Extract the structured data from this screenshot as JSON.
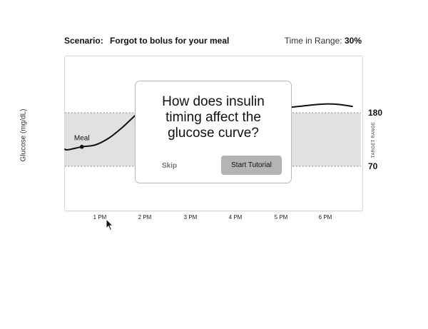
{
  "header": {
    "scenario_label": "Scenario:",
    "scenario_text": "Forgot to bolus for your meal",
    "time_in_range_label": "Time in Range:",
    "time_in_range_value": "30%"
  },
  "chart": {
    "y_axis_label": "Glucose (mg/dL)",
    "target_range_label": "TARGET RANGE",
    "range_high": "180",
    "range_low": "70",
    "x_ticks": [
      "1 PM",
      "2 PM",
      "3 PM",
      "4 PM",
      "5 PM",
      "6 PM"
    ],
    "meal_label": "Meal",
    "range_fill_color": "#e2e0e2",
    "curve_color": "#111111"
  },
  "chart_data": {
    "type": "line",
    "title": "",
    "xlabel": "",
    "ylabel": "Glucose (mg/dL)",
    "x_ticks": [
      "1 PM",
      "2 PM",
      "3 PM",
      "4 PM",
      "5 PM",
      "6 PM"
    ],
    "target_range": [
      70,
      180
    ],
    "series": [
      {
        "x": [
          12.0,
          12.3,
          12.6,
          12.9,
          13.2,
          13.5,
          13.8,
          14.1,
          14.4,
          14.7,
          15.0,
          15.3,
          15.6,
          15.9,
          16.2,
          16.5,
          16.8,
          17.1,
          17.4,
          17.7,
          18.0,
          18.3,
          18.6
        ],
        "y": [
          105,
          104,
          110,
          114,
          128,
          150,
          176,
          200,
          214,
          222,
          225,
          224,
          220,
          218,
          215,
          211,
          197,
          191,
          193,
          196,
          198,
          197,
          193
        ]
      }
    ],
    "annotations": [
      {
        "text": "Meal",
        "x": 12.6,
        "y": 110
      }
    ]
  },
  "modal": {
    "title": "How does insulin timing affect the glucose curve?",
    "skip_label": "Skip",
    "start_label": "Start Tutorial"
  }
}
